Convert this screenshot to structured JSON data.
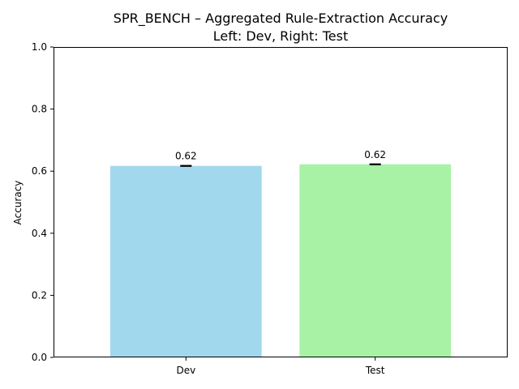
{
  "chart_data": {
    "type": "bar",
    "title": "SPR_BENCH – Aggregated Rule-Extraction Accuracy",
    "subtitle": "Left: Dev, Right: Test",
    "xlabel": "",
    "ylabel": "Accuracy",
    "categories": [
      "Dev",
      "Test"
    ],
    "values": [
      0.617,
      0.622
    ],
    "errors": [
      0.001,
      0.001
    ],
    "data_labels": [
      "0.62",
      "0.62"
    ],
    "colors": [
      "#a1d8ee",
      "#a7f2a5"
    ],
    "ylim": [
      0,
      1
    ],
    "yticks": [
      0.0,
      0.2,
      0.4,
      0.6,
      0.8,
      1.0
    ],
    "ytick_labels": [
      "0.0",
      "0.2",
      "0.4",
      "0.6",
      "0.8",
      "1.0"
    ],
    "grid": false,
    "legend": "none"
  }
}
